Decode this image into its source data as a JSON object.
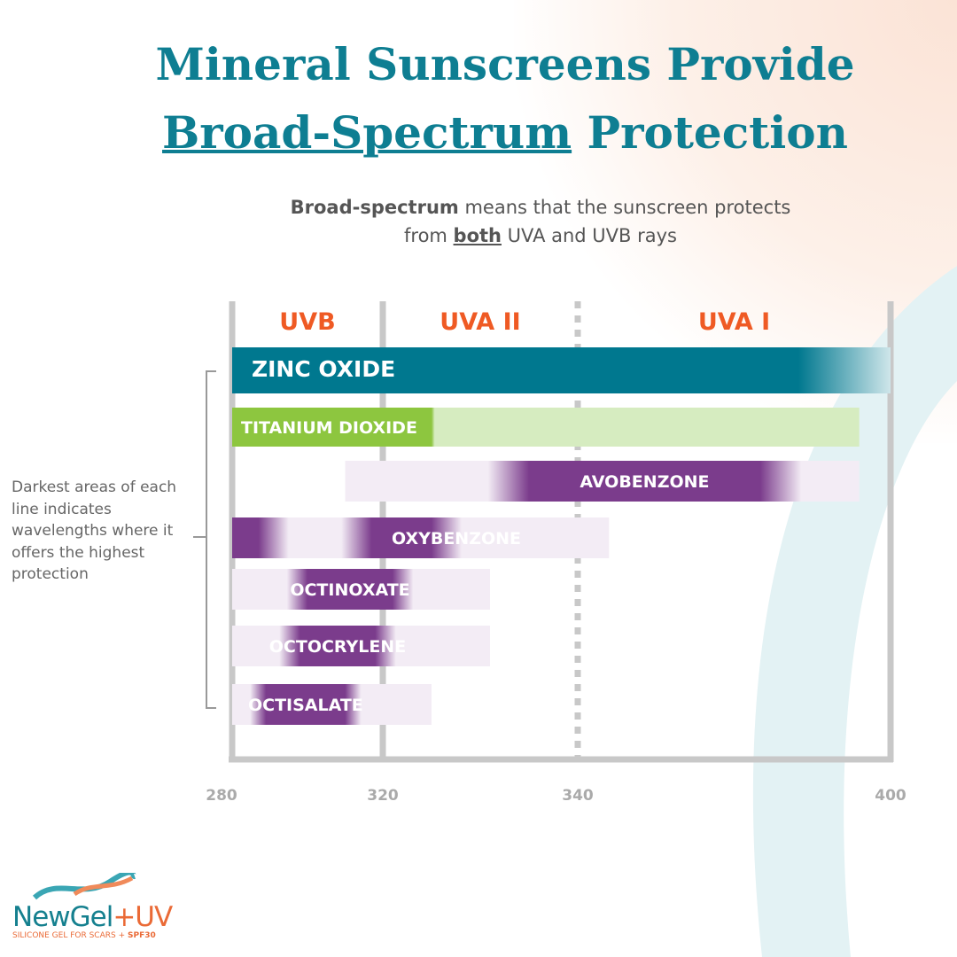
{
  "title": {
    "line1": "Mineral Sunscreens Provide",
    "underlined": "Broad-Spectrum",
    "rest": "Protection"
  },
  "subtitle": {
    "bold": "Broad-spectrum",
    "p1": " means that the sunscreen protects from ",
    "both": "both",
    "p2": " UVA and UVB rays"
  },
  "note": "Darkest areas of each line indicates wavelengths where it offers the highest protection",
  "logo": {
    "name": "NewGel",
    "plus": "+UV",
    "tagline": "SILICONE GEL FOR SCARS + ",
    "spf": "SPF30"
  },
  "colors": {
    "teal": "#00788f",
    "green": "#8dc63f",
    "purple": "#7b3c8c",
    "region_label": "#ef5a24",
    "axis": "#c8c8c8"
  },
  "chart_data": {
    "type": "bar",
    "orientation": "horizontal ranges",
    "xlabel": "",
    "ylabel": "",
    "x_ticks": [
      280,
      320,
      340,
      400
    ],
    "xlim": [
      280,
      400
    ],
    "regions": [
      {
        "label": "UVB",
        "from": 280,
        "to": 320
      },
      {
        "label": "UVA II",
        "from": 320,
        "to": 340
      },
      {
        "label": "UVA I",
        "from": 340,
        "to": 400
      }
    ],
    "series": [
      {
        "name": "ZINC OXIDE",
        "from": 280,
        "to": 400,
        "peak": [
          [
            280,
            393
          ]
        ],
        "color": "teal"
      },
      {
        "name": "TITANIUM DIOXIDE",
        "from": 280,
        "to": 394,
        "peak": [
          [
            280,
            325
          ]
        ],
        "color": "green"
      },
      {
        "name": "AVOBENZONE",
        "from": 310,
        "to": 394,
        "peak": [
          [
            335,
            375
          ]
        ],
        "color": "purple"
      },
      {
        "name": "OXYBENZONE",
        "from": 280,
        "to": 346,
        "peak": [
          [
            280,
            287
          ],
          [
            317,
            325
          ]
        ],
        "color": "purple"
      },
      {
        "name": "OCTINOXATE",
        "from": 280,
        "to": 331,
        "peak": [
          [
            300,
            321
          ]
        ],
        "color": "purple"
      },
      {
        "name": "OCTOCRYLENE",
        "from": 280,
        "to": 331,
        "peak": [
          [
            298,
            318
          ]
        ],
        "color": "purple"
      },
      {
        "name": "OCTISALATE",
        "from": 280,
        "to": 325,
        "peak": [
          [
            289,
            310
          ]
        ],
        "color": "purple"
      }
    ]
  }
}
